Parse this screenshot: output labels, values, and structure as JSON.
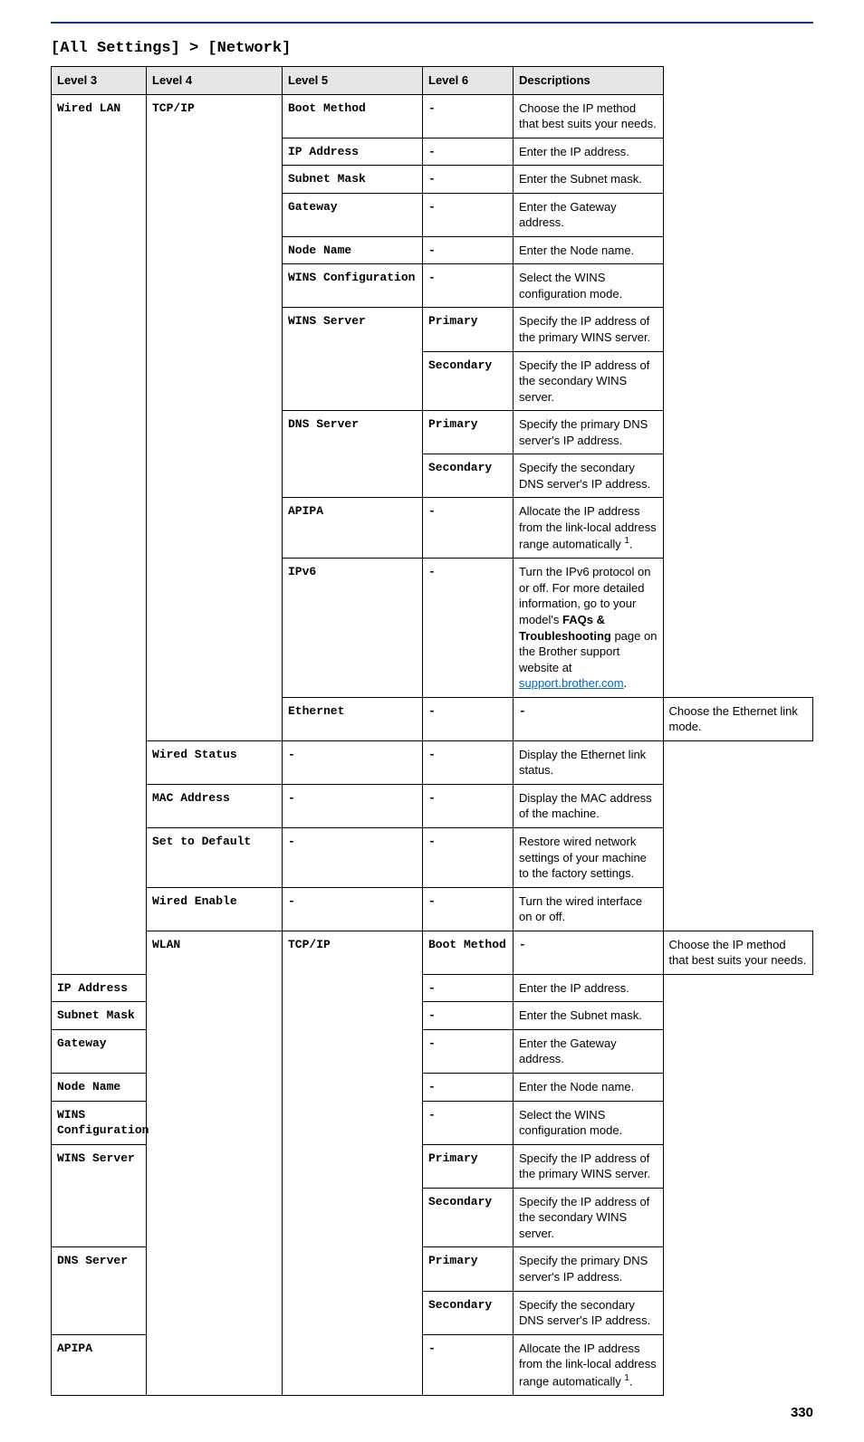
{
  "section_title": "[All Settings] > [Network]",
  "page_number": "330",
  "link_text": "support.brother.com",
  "headers": {
    "l3": "Level 3",
    "l4": "Level 4",
    "l5": "Level 5",
    "l6": "Level 6",
    "desc": "Descriptions"
  },
  "cells": {
    "wired_lan": "Wired LAN",
    "tcpip1": "TCP/IP",
    "boot_method1": "Boot Method",
    "boot_method1_d": "Choose the IP method that best suits your needs.",
    "ip_address1": "IP Address",
    "ip_address1_d": "Enter the IP address.",
    "subnet1": "Subnet Mask",
    "subnet1_d": "Enter the Subnet mask.",
    "gateway1": "Gateway",
    "gateway1_d": "Enter the Gateway address.",
    "node1": "Node Name",
    "node1_d": "Enter the Node name.",
    "winsconf1": "WINS Configuration",
    "winsconf1_d": "Select the WINS configuration mode.",
    "winssrv1": "WINS Server",
    "primary1a": "Primary",
    "primary1a_d": "Specify the IP address of the primary WINS server.",
    "secondary1a": "Secondary",
    "secondary1a_d": "Specify the IP address of the secondary WINS server.",
    "dnssrv1": "DNS Server",
    "primary1b": "Primary",
    "primary1b_d": "Specify the primary DNS server's IP address.",
    "secondary1b": "Secondary",
    "secondary1b_d": "Specify the secondary DNS server's IP address.",
    "apipa1": "APIPA",
    "apipa1_d_pre": "Allocate the IP address from the link-local address range automatically ",
    "ipv6_1": "IPv6",
    "ipv6_1_d_pre": "Turn the IPv6 protocol on or off. For more detailed information, go to your model's ",
    "ipv6_1_d_bold": "FAQs & Troubleshooting",
    "ipv6_1_d_mid": " page on the Brother support website at ",
    "ethernet": "Ethernet",
    "ethernet_d": "Choose the Ethernet link mode.",
    "wired_status": "Wired Status",
    "wired_status_d": "Display the Ethernet link status.",
    "mac_address": "MAC Address",
    "mac_address_d": "Display the MAC address of the machine.",
    "set_default": "Set to Default",
    "set_default_d": "Restore wired network settings of your machine to the factory settings.",
    "wired_enable": "Wired Enable",
    "wired_enable_d": "Turn the wired interface on or off.",
    "wlan": "WLAN",
    "tcpip2": "TCP/IP",
    "boot_method2": "Boot Method",
    "boot_method2_d": "Choose the IP method that best suits your needs.",
    "ip_address2": "IP Address",
    "ip_address2_d": "Enter the IP address.",
    "subnet2": "Subnet Mask",
    "subnet2_d": "Enter the Subnet mask.",
    "gateway2": "Gateway",
    "gateway2_d": "Enter the Gateway address.",
    "node2": "Node Name",
    "node2_d": "Enter the Node name.",
    "winsconf2": "WINS Configuration",
    "winsconf2_d": "Select the WINS configuration mode.",
    "winssrv2": "WINS Server",
    "primary2a": "Primary",
    "primary2a_d": "Specify the IP address of the primary WINS server.",
    "secondary2a": "Secondary",
    "secondary2a_d": "Specify the IP address of the secondary WINS server.",
    "dnssrv2": "DNS Server",
    "primary2b": "Primary",
    "primary2b_d": "Specify the primary DNS server's IP address.",
    "secondary2b": "Secondary",
    "secondary2b_d": "Specify the secondary DNS server's IP address.",
    "apipa2": "APIPA",
    "apipa2_d_pre": "Allocate the IP address from the link-local address range automatically "
  },
  "dash": "-",
  "footnote_1": "1",
  "period": "."
}
